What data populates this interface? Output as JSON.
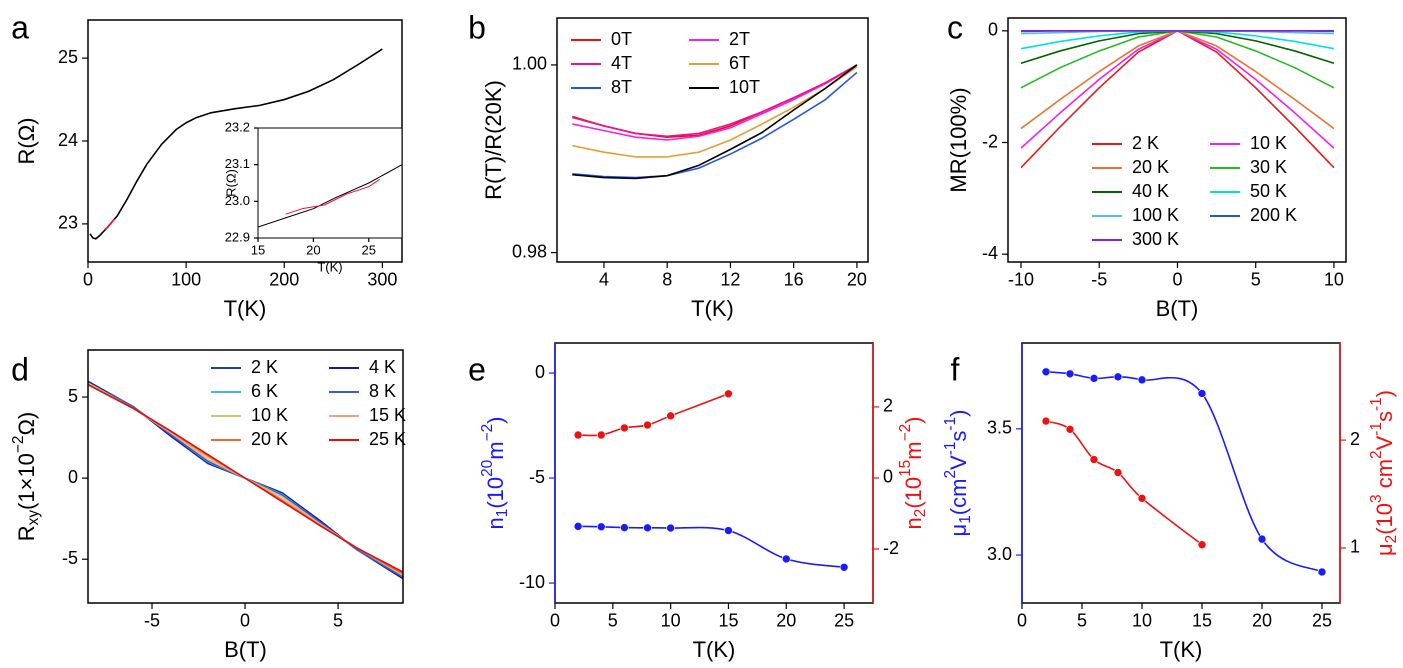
{
  "chart_data": [
    {
      "type": "line",
      "label": "a",
      "xlabel": "T(K)",
      "ylabel": "R(Ω)",
      "xlim": [
        0,
        320
      ],
      "ylim": [
        22.54,
        25.46
      ],
      "xticks": [
        0,
        100,
        200,
        300
      ],
      "yticks": [
        23,
        24,
        25
      ],
      "series": [
        {
          "color": "#000000",
          "x": [
            2,
            5,
            8,
            12,
            16,
            20,
            25,
            30,
            40,
            50,
            60,
            75,
            90,
            100,
            110,
            125,
            150,
            175,
            200,
            225,
            250,
            275,
            300
          ],
          "values": [
            22.88,
            22.83,
            22.82,
            22.86,
            22.91,
            22.96,
            23.03,
            23.1,
            23.3,
            23.52,
            23.72,
            23.96,
            24.14,
            24.22,
            24.28,
            24.34,
            24.39,
            24.43,
            24.5,
            24.6,
            24.74,
            24.92,
            25.11
          ]
        },
        {
          "color": "#ee1144",
          "x": [
            17,
            20,
            23,
            27
          ],
          "values": [
            22.93,
            22.96,
            23.0,
            23.06
          ]
        }
      ],
      "inset": {
        "xlabel": "T(K)",
        "ylabel": "R(Ω)",
        "xlim": [
          15,
          28
        ],
        "ylim": [
          22.9,
          23.2
        ],
        "xticks": [
          15,
          20,
          25
        ],
        "yticks": [
          22.9,
          {
            "value": 23,
            "label": "23.0"
          },
          23.1,
          23.2
        ],
        "series": [
          {
            "color": "#000000",
            "x": [
              15,
              18,
              20,
              22,
              25,
              28
            ],
            "values": [
              22.93,
              22.96,
              22.98,
              23.01,
              23.05,
              23.1
            ]
          },
          {
            "color": "#ee1144",
            "x": [
              17.5,
              19,
              21,
              23,
              25,
              26
            ],
            "values": [
              22.965,
              22.98,
              22.99,
              23.02,
              23.04,
              23.06
            ]
          }
        ]
      }
    },
    {
      "type": "line",
      "label": "b",
      "xlabel": "T(K)",
      "ylabel": "R(T)/R(20K)",
      "xlim": [
        1.03,
        20.7
      ],
      "ylim": [
        0.979,
        1.005
      ],
      "xticks": [
        4,
        8,
        12,
        16,
        20
      ],
      "yticks": [
        0.98,
        {
          "value": 1,
          "label": "1.00"
        }
      ],
      "legend": "upper left",
      "x": [
        2,
        4,
        6,
        8,
        10,
        12,
        14,
        16,
        18,
        20
      ],
      "series": [
        {
          "name": "0T",
          "color": "#ee1111",
          "values": [
            0.9945,
            0.9935,
            0.9927,
            0.9923,
            0.9925,
            0.9935,
            0.995,
            0.9965,
            0.998,
            1.0
          ]
        },
        {
          "name": "2T",
          "color": "#ee22ee",
          "values": [
            0.9937,
            0.993,
            0.9923,
            0.992,
            0.9924,
            0.9933,
            0.9948,
            0.9963,
            0.998,
            1.0
          ]
        },
        {
          "name": "4T",
          "color": "#ee1188",
          "values": [
            0.9944,
            0.9935,
            0.9927,
            0.9924,
            0.9927,
            0.9937,
            0.995,
            0.9965,
            0.9981,
            1.0
          ]
        },
        {
          "name": "6T",
          "color": "#e0a030",
          "values": [
            0.9914,
            0.9907,
            0.9902,
            0.9902,
            0.9907,
            0.992,
            0.9937,
            0.9955,
            0.9975,
            0.9998
          ]
        },
        {
          "name": "8T",
          "color": "#2255ee",
          "values": [
            0.9884,
            0.9881,
            0.988,
            0.9882,
            0.989,
            0.9905,
            0.9922,
            0.9942,
            0.9963,
            0.9992
          ]
        },
        {
          "name": "10T",
          "color": "#000000",
          "values": [
            0.9883,
            0.988,
            0.9879,
            0.9882,
            0.9893,
            0.991,
            0.9928,
            0.9952,
            0.9975,
            1.0
          ]
        }
      ]
    },
    {
      "type": "line",
      "label": "c",
      "xlabel": "B(T)",
      "ylabel": "MR(100%)",
      "xlim": [
        -10.83,
        10.77
      ],
      "ylim": [
        -4.14,
        0.23
      ],
      "xticks": [
        -10,
        -5,
        0,
        5,
        10
      ],
      "yticks": [
        -4,
        -2,
        0
      ],
      "legend": "lower center",
      "x": [
        -10,
        -7.5,
        -5,
        -2.5,
        0,
        2.5,
        5,
        7.5,
        10
      ],
      "series": [
        {
          "name": "2 K",
          "color": "#e81818",
          "values": [
            -2.45,
            -1.72,
            -1.02,
            -0.38,
            0,
            -0.38,
            -1.02,
            -1.72,
            -2.45
          ]
        },
        {
          "name": "10 K",
          "color": "#ee22ee",
          "values": [
            -2.1,
            -1.47,
            -0.87,
            -0.33,
            0,
            -0.33,
            -0.87,
            -1.47,
            -2.1
          ]
        },
        {
          "name": "20 K",
          "color": "#f07030",
          "values": [
            -1.75,
            -1.23,
            -0.73,
            -0.27,
            0,
            -0.27,
            -0.73,
            -1.23,
            -1.75
          ]
        },
        {
          "name": "30 K",
          "color": "#22bb22",
          "values": [
            -1.02,
            -0.66,
            -0.36,
            -0.11,
            0,
            -0.11,
            -0.36,
            -0.66,
            -1.02
          ]
        },
        {
          "name": "40 K",
          "color": "#006400",
          "values": [
            -0.58,
            -0.36,
            -0.18,
            -0.05,
            0,
            -0.05,
            -0.18,
            -0.36,
            -0.58
          ]
        },
        {
          "name": "50 K",
          "color": "#00e0e0",
          "values": [
            -0.32,
            -0.19,
            -0.09,
            -0.02,
            0,
            -0.02,
            -0.09,
            -0.19,
            -0.32
          ]
        },
        {
          "name": "100 K",
          "color": "#55bbee",
          "values": [
            -0.05,
            -0.03,
            -0.01,
            0,
            0,
            0,
            -0.01,
            -0.03,
            -0.05
          ]
        },
        {
          "name": "200 K",
          "color": "#2255dd",
          "values": [
            -0.01,
            0,
            0,
            0,
            0,
            0,
            0,
            0,
            -0.01
          ]
        },
        {
          "name": "300 K",
          "color": "#8822dd",
          "values": [
            0,
            0,
            0,
            0,
            0,
            0,
            0,
            0,
            0
          ]
        }
      ]
    },
    {
      "type": "line",
      "label": "d",
      "xlabel": "B(T)",
      "ylabel": [
        "R",
        "xy",
        "(1×10",
        "−2",
        "Ω)"
      ],
      "xlim": [
        -8.44,
        8.49
      ],
      "ylim": [
        -7.7,
        7.9
      ],
      "xticks": [
        -5,
        0,
        5
      ],
      "yticks": [
        -5,
        0,
        5
      ],
      "legend": "upper right",
      "x": [
        -8.5,
        -6,
        -4,
        -2,
        0,
        2,
        4,
        6,
        8.5
      ],
      "series": [
        {
          "name": "2 K",
          "color": "#1f3fb0",
          "values": [
            6.0,
            4.4,
            2.6,
            0.9,
            0,
            -0.9,
            -2.6,
            -4.4,
            -6.2
          ]
        },
        {
          "name": "4 K",
          "color": "#1818a8",
          "values": [
            6.0,
            4.4,
            2.6,
            0.95,
            0,
            -0.95,
            -2.6,
            -4.4,
            -6.2
          ]
        },
        {
          "name": "6 K",
          "color": "#40b8e8",
          "values": [
            5.9,
            4.4,
            2.7,
            1.0,
            0,
            -1.0,
            -2.7,
            -4.4,
            -6.1
          ]
        },
        {
          "name": "8 K",
          "color": "#3a5ccc",
          "values": [
            5.9,
            4.4,
            2.7,
            1.05,
            0,
            -1.05,
            -2.7,
            -4.4,
            -6.1
          ]
        },
        {
          "name": "10 K",
          "color": "#d9c070",
          "values": [
            5.9,
            4.3,
            2.8,
            1.15,
            0,
            -1.15,
            -2.8,
            -4.3,
            -6.0
          ]
        },
        {
          "name": "15 K",
          "color": "#f5a070",
          "values": [
            5.8,
            4.3,
            2.85,
            1.3,
            0,
            -1.3,
            -2.85,
            -4.3,
            -5.9
          ]
        },
        {
          "name": "20 K",
          "color": "#f06a30",
          "values": [
            5.8,
            4.3,
            2.9,
            1.4,
            0,
            -1.4,
            -2.9,
            -4.3,
            -5.9
          ]
        },
        {
          "name": "25 K",
          "color": "#e01010",
          "values": [
            5.8,
            4.3,
            2.9,
            1.45,
            0,
            -1.45,
            -2.9,
            -4.3,
            -5.8
          ]
        }
      ]
    },
    {
      "type": "line",
      "label": "e",
      "xlabel": "T(K)",
      "ylabel": [
        "n",
        "1",
        "(10",
        "20",
        "m",
        "−2",
        ")"
      ],
      "y2label": [
        "n",
        "2",
        "(10",
        "15",
        "m",
        "−2",
        ")"
      ],
      "ycolor": "#1a1aff",
      "y2color": "#ee1111",
      "markers": true,
      "smooth": true,
      "xlim": [
        0,
        27.5
      ],
      "ylim": [
        -10.95,
        1.43
      ],
      "y2lim": [
        -3.52,
        3.8
      ],
      "xticks": [
        0,
        5,
        10,
        15,
        20,
        25
      ],
      "yticks": [
        -10,
        -5,
        0
      ],
      "y2ticks": [
        -2,
        0,
        2
      ],
      "series": [
        {
          "color": "#1a1aff",
          "x": [
            2,
            4,
            6,
            8,
            10,
            15,
            20,
            25
          ],
          "values": [
            -7.3,
            -7.32,
            -7.36,
            -7.37,
            -7.38,
            -7.5,
            -8.85,
            -9.25
          ]
        },
        {
          "color": "#ee1111",
          "axis": "y2",
          "x": [
            2,
            4,
            6,
            8,
            10,
            15
          ],
          "values": [
            1.21,
            1.21,
            1.41,
            1.49,
            1.75,
            2.37
          ]
        }
      ]
    },
    {
      "type": "line",
      "label": "f",
      "xlabel": "T(K)",
      "ylabel": [
        "μ",
        "1",
        "(cm",
        "2",
        "V",
        "-1",
        "s",
        "-1",
        ")"
      ],
      "y2label": [
        "μ",
        "2",
        "(10",
        "3",
        " cm",
        "2",
        "V",
        "-1",
        "s",
        "-1",
        ")"
      ],
      "ycolor": "#1a1aff",
      "y2color": "#ee1111",
      "markers": true,
      "smooth": true,
      "xlim": [
        0,
        26.5
      ],
      "ylim": [
        2.81,
        3.84
      ],
      "y2lim": [
        0.49,
        2.9
      ],
      "xticks": [
        0,
        5,
        10,
        15,
        20,
        25
      ],
      "yticks": [
        {
          "value": 3,
          "label": "3.0"
        },
        3.5
      ],
      "y2ticks": [
        1,
        2
      ],
      "series": [
        {
          "color": "#1a1aff",
          "x": [
            2,
            4,
            6,
            8,
            10,
            15,
            20,
            25
          ],
          "values": [
            3.726,
            3.718,
            3.7,
            3.706,
            3.694,
            3.64,
            3.063,
            2.933
          ]
        },
        {
          "color": "#ee1111",
          "axis": "y2",
          "x": [
            2,
            4,
            6,
            8,
            10,
            15
          ],
          "values": [
            2.176,
            2.1,
            1.82,
            1.7,
            1.46,
            1.03
          ]
        }
      ]
    }
  ]
}
